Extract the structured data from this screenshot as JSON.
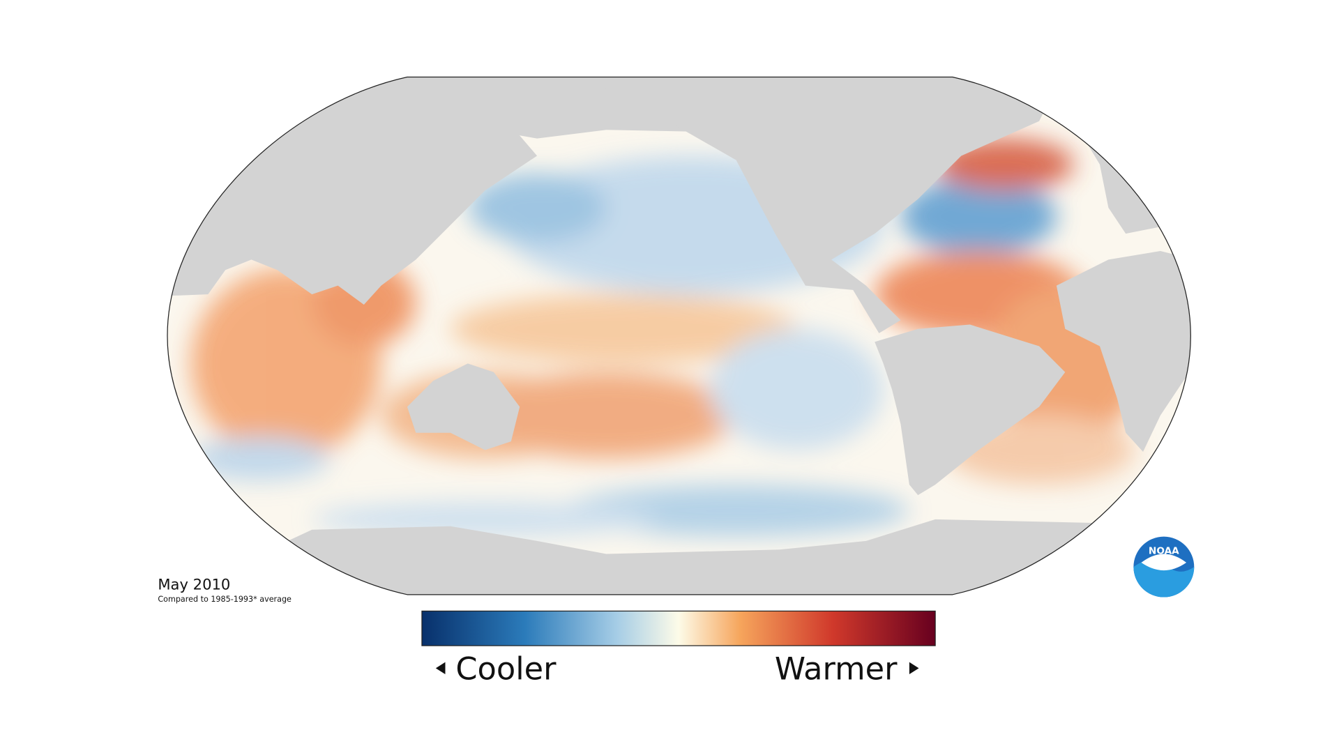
{
  "title": "May 2010",
  "subtitle": "Compared to 1985-1993* average",
  "legend": {
    "low_label": "Cooler",
    "high_label": "Warmer"
  },
  "logo": {
    "text": "NOAA"
  }
}
